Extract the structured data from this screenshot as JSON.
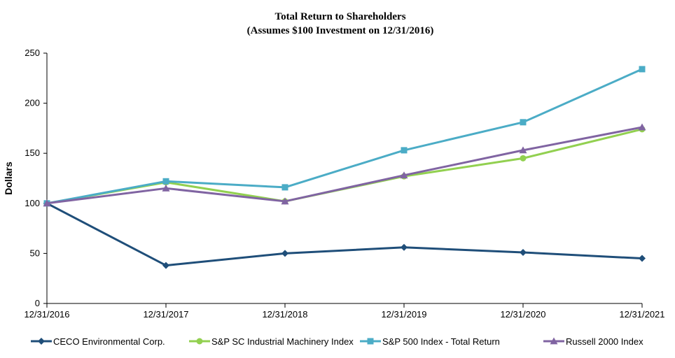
{
  "chart_data": {
    "type": "line",
    "title": "Total Return to Shareholders",
    "subtitle": "(Assumes $100 Investment on 12/31/2016)",
    "ylabel": "Dollars",
    "xlabel": "",
    "categories": [
      "12/31/2016",
      "12/31/2017",
      "12/31/2018",
      "12/31/2019",
      "12/31/2020",
      "12/31/2021"
    ],
    "ylim": [
      0,
      250
    ],
    "yticks": [
      0,
      50,
      100,
      150,
      200,
      250
    ],
    "grid": false,
    "legend_position": "bottom",
    "series": [
      {
        "name": "CECO Environmental Corp.",
        "color": "#1f4e79",
        "marker": "diamond",
        "values": [
          100,
          38,
          50,
          56,
          51,
          45
        ]
      },
      {
        "name": "S&P SC Industrial Machinery Index",
        "color": "#92d050",
        "marker": "circle",
        "values": [
          100,
          121,
          102,
          127,
          145,
          174
        ]
      },
      {
        "name": "S&P 500 Index - Total Return",
        "color": "#4bacc6",
        "marker": "square",
        "values": [
          100,
          122,
          116,
          153,
          181,
          234
        ]
      },
      {
        "name": "Russell 2000 Index",
        "color": "#8064a2",
        "marker": "triangle",
        "values": [
          100,
          115,
          102,
          128,
          153,
          176
        ]
      }
    ]
  }
}
